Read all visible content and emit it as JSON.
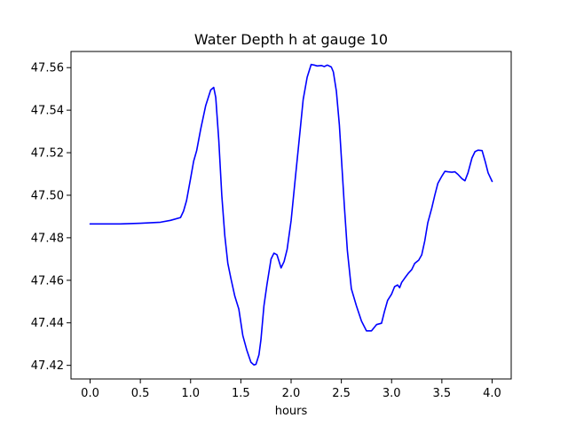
{
  "chart_data": {
    "type": "line",
    "title": "Water Depth h at gauge 10",
    "xlabel": "hours",
    "ylabel": "",
    "xlim": [
      -0.19,
      4.19
    ],
    "ylim": [
      47.4136,
      47.5676
    ],
    "xticks": [
      0,
      0.5,
      1,
      1.5,
      2,
      2.5,
      3,
      3.5,
      4
    ],
    "xtick_labels": [
      "0.0",
      "0.5",
      "1.0",
      "1.5",
      "2.0",
      "2.5",
      "3.0",
      "3.5",
      "4.0"
    ],
    "yticks": [
      47.42,
      47.44,
      47.46,
      47.48,
      47.5,
      47.52,
      47.54,
      47.56
    ],
    "ytick_labels": [
      "47.42",
      "47.44",
      "47.46",
      "47.48",
      "47.50",
      "47.52",
      "47.54",
      "47.56"
    ],
    "grid": false,
    "legend": "none",
    "series": [
      {
        "color": "#0000ff",
        "x": [
          0.0,
          0.3,
          0.5,
          0.7,
          0.8,
          0.9,
          0.93,
          0.96,
          1.0,
          1.03,
          1.06,
          1.1,
          1.15,
          1.2,
          1.23,
          1.25,
          1.28,
          1.31,
          1.34,
          1.37,
          1.4,
          1.44,
          1.48,
          1.52,
          1.56,
          1.6,
          1.63,
          1.65,
          1.68,
          1.7,
          1.73,
          1.76,
          1.8,
          1.83,
          1.86,
          1.9,
          1.93,
          1.96,
          2.0,
          2.04,
          2.08,
          2.12,
          2.16,
          2.2,
          2.23,
          2.26,
          2.3,
          2.33,
          2.36,
          2.4,
          2.42,
          2.45,
          2.48,
          2.5,
          2.53,
          2.56,
          2.6,
          2.65,
          2.7,
          2.75,
          2.8,
          2.85,
          2.9,
          2.93,
          2.96,
          3.0,
          3.03,
          3.06,
          3.08,
          3.1,
          3.13,
          3.17,
          3.2,
          3.23,
          3.27,
          3.3,
          3.33,
          3.36,
          3.4,
          3.43,
          3.46,
          3.5,
          3.53,
          3.56,
          3.6,
          3.63,
          3.66,
          3.7,
          3.73,
          3.76,
          3.8,
          3.83,
          3.86,
          3.9,
          3.93,
          3.96,
          4.0
        ],
        "values": [
          47.4865,
          47.4865,
          47.4868,
          47.4873,
          47.4882,
          47.4895,
          47.4925,
          47.4975,
          47.508,
          47.516,
          47.521,
          47.531,
          47.542,
          47.5495,
          47.5507,
          47.546,
          47.526,
          47.5,
          47.481,
          47.468,
          47.461,
          47.4525,
          47.4465,
          47.434,
          47.427,
          47.4215,
          47.4202,
          47.4205,
          47.425,
          47.432,
          47.448,
          47.458,
          47.47,
          47.4728,
          47.472,
          47.4658,
          47.4688,
          47.4745,
          47.488,
          47.507,
          47.526,
          47.545,
          47.5555,
          47.5615,
          47.5612,
          47.5608,
          47.561,
          47.5605,
          47.5612,
          47.5603,
          47.558,
          47.549,
          47.533,
          47.518,
          47.495,
          47.474,
          47.456,
          47.448,
          47.4408,
          47.4362,
          47.4362,
          47.4392,
          47.4398,
          47.4455,
          47.4505,
          47.4535,
          47.457,
          47.4578,
          47.4565,
          47.459,
          47.461,
          47.4635,
          47.465,
          47.468,
          47.4695,
          47.472,
          47.4785,
          47.487,
          47.494,
          47.5,
          47.5055,
          47.509,
          47.5112,
          47.511,
          47.5108,
          47.511,
          47.5098,
          47.5078,
          47.5068,
          47.5105,
          47.5175,
          47.5205,
          47.5212,
          47.521,
          47.516,
          47.5105,
          47.5065
        ]
      }
    ]
  }
}
